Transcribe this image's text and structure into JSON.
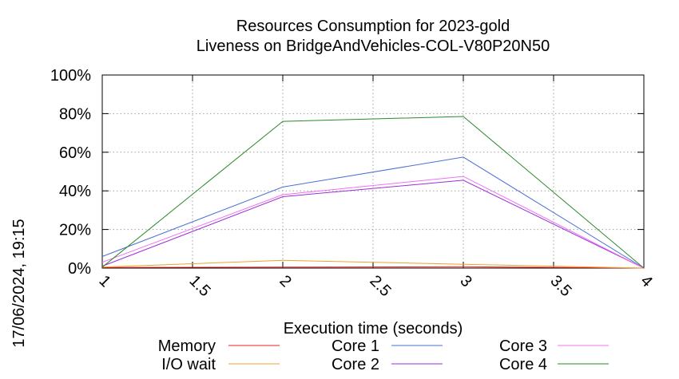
{
  "chart_data": {
    "type": "line",
    "title_line1": "Resources Consumption for 2023-gold",
    "title_line2": "Liveness on BridgeAndVehicles-COL-V80P20N50",
    "xlabel": "Execution time (seconds)",
    "ylabel": "",
    "timestamp": "17/06/2024, 19:15",
    "xlim": [
      1,
      4
    ],
    "ylim": [
      0,
      100
    ],
    "x_ticks": [
      "1",
      "1.5",
      "2",
      "2.5",
      "3",
      "3.5",
      "4"
    ],
    "y_ticks": [
      "0%",
      "20%",
      "40%",
      "60%",
      "80%",
      "100%"
    ],
    "grid": true,
    "legend_position": "bottom",
    "series": [
      {
        "name": "Memory",
        "color": "#e8231e",
        "x": [
          1,
          2,
          3,
          4
        ],
        "values": [
          0.3,
          0.5,
          0.7,
          0
        ]
      },
      {
        "name": "I/O wait",
        "color": "#f0a030",
        "x": [
          1,
          2,
          3,
          4
        ],
        "values": [
          0.5,
          4,
          2,
          0
        ]
      },
      {
        "name": "Core 1",
        "color": "#4a6fd4",
        "x": [
          1,
          2,
          3,
          4
        ],
        "values": [
          6,
          42,
          57.5,
          0
        ]
      },
      {
        "name": "Core 2",
        "color": "#9a30d8",
        "x": [
          1,
          2,
          3,
          4
        ],
        "values": [
          1,
          37,
          45.5,
          0
        ]
      },
      {
        "name": "Core 3",
        "color": "#f070f0",
        "x": [
          1,
          2,
          3,
          4
        ],
        "values": [
          3,
          38,
          47.5,
          0
        ]
      },
      {
        "name": "Core 4",
        "color": "#2a8a2a",
        "x": [
          1,
          2,
          3,
          4
        ],
        "values": [
          0.5,
          76,
          78.5,
          0
        ]
      }
    ]
  }
}
